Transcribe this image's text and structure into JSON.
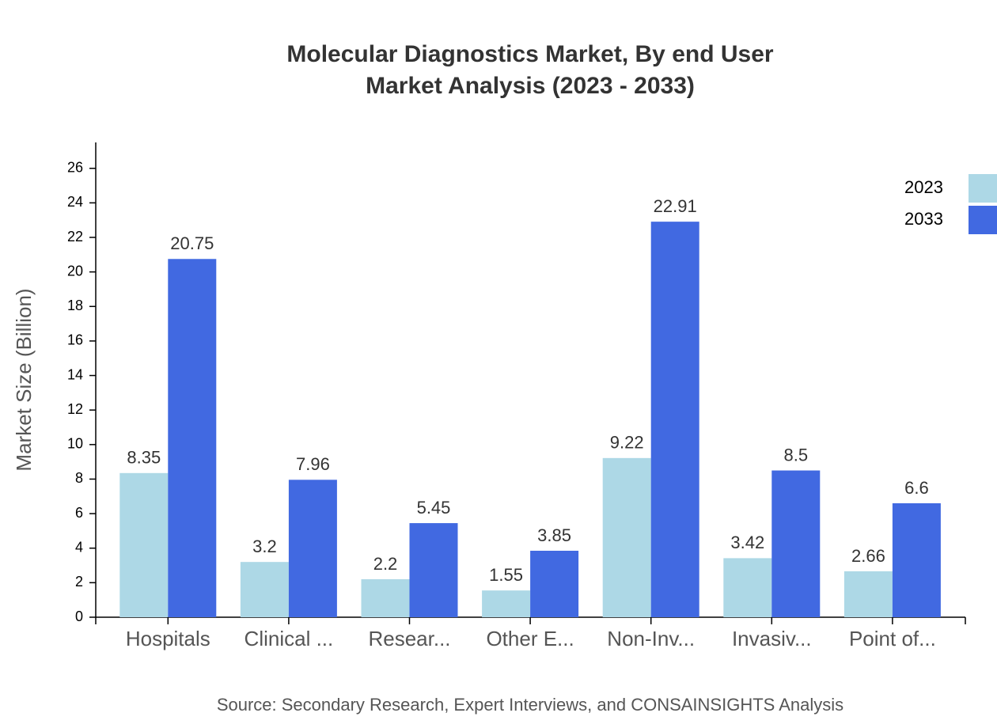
{
  "chart_data": {
    "type": "bar",
    "title": "Molecular Diagnostics Market, By end User",
    "subtitle": "Market Analysis (2023 - 2033)",
    "y_label": "Market Size (Billion)",
    "source": "Source: Secondary Research, Expert Interviews, and CONSAINSIGHTS Analysis",
    "categories": [
      "Hospitals",
      "Clinical ...",
      "Resear...",
      "Other E...",
      "Non-Inv...",
      "Invasiv...",
      "Point of..."
    ],
    "series": [
      {
        "name": "2023",
        "color": "#add8e6",
        "values": [
          8.35,
          3.2,
          2.2,
          1.55,
          9.22,
          3.42,
          2.66
        ]
      },
      {
        "name": "2033",
        "color": "#4169e1",
        "values": [
          20.75,
          7.96,
          5.45,
          3.85,
          22.91,
          8.5,
          6.6
        ]
      }
    ],
    "ylim": [
      0,
      27.5
    ],
    "yticks": [
      0,
      2,
      4,
      6,
      8,
      10,
      12,
      14,
      16,
      18,
      20,
      22,
      24,
      26
    ],
    "grid": false,
    "legend": "top-right"
  }
}
